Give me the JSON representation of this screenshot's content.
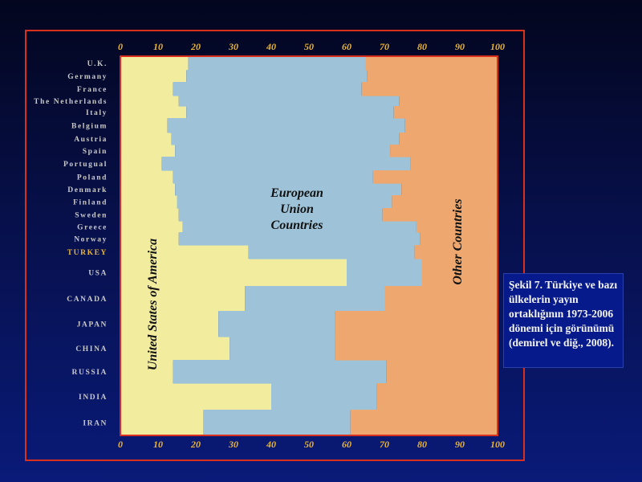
{
  "caption": "Şekil 7. Türkiye ve bazı ülkelerin yayın ortaklığının 1973-2006 dönemi için görünümü (demirel ve diğ., 2008).",
  "chart_data": {
    "type": "bar",
    "orientation": "horizontal-stacked-100",
    "x_ticks": [
      "0",
      "10",
      "20",
      "30",
      "40",
      "50",
      "60",
      "70",
      "80",
      "90",
      "100"
    ],
    "xlim": [
      0,
      100
    ],
    "categories": [
      "U.K.",
      "Germany",
      "France",
      "The Netherlands",
      "Italy",
      "Belgium",
      "Austria",
      "Spain",
      "Portugual",
      "Poland",
      "Denmark",
      "Finland",
      "Sweden",
      "Greece",
      "Norway",
      "TURKEY",
      "USA",
      "CANADA",
      "JAPAN",
      "CHINA",
      "RUSSIA",
      "INDIA",
      "IRAN"
    ],
    "highlight_category": "TURKEY",
    "series": [
      {
        "name": "United States of America",
        "values": [
          18,
          17.5,
          14,
          15.5,
          17.5,
          12.5,
          13.5,
          14.5,
          11,
          14,
          14.5,
          15,
          15.5,
          16.5,
          15.5,
          34,
          60,
          33,
          26,
          29,
          14,
          40,
          22
        ]
      },
      {
        "name": "European Union Countries",
        "values": [
          47,
          48,
          50,
          58.5,
          55,
          63,
          60.5,
          57,
          66,
          53,
          60,
          57,
          54,
          62,
          64,
          44,
          20,
          37,
          31,
          28,
          56.5,
          28,
          39
        ]
      },
      {
        "name": "Other Countries",
        "values": [
          35,
          34.5,
          36,
          26,
          27.5,
          24.5,
          26,
          28.5,
          23,
          33,
          25.5,
          28,
          30.5,
          21.5,
          20.5,
          22,
          20,
          30,
          43,
          43,
          29.5,
          32,
          39
        ]
      }
    ],
    "colors": {
      "United States of America": "#f1ec9e",
      "European Union Countries": "#9ec3d8",
      "Other Countries": "#eea76e"
    }
  }
}
